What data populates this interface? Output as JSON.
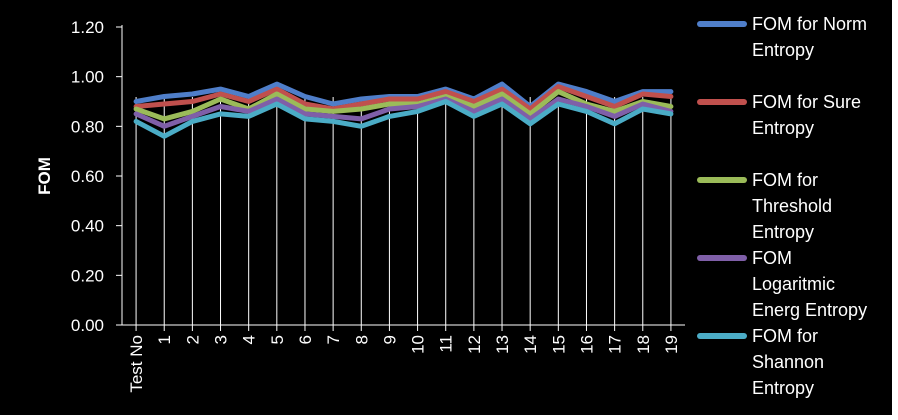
{
  "chart_data": {
    "type": "line",
    "title": "",
    "xlabel": "",
    "ylabel": "FOM",
    "ylim": [
      0,
      1.2
    ],
    "yticks": [
      "0.00",
      "0.20",
      "0.40",
      "0.60",
      "0.80",
      "1.00",
      "1.20"
    ],
    "grid": "vertical",
    "legend_position": "right",
    "categories": [
      "Test No",
      "1",
      "2",
      "3",
      "4",
      "5",
      "6",
      "7",
      "8",
      "9",
      "10",
      "11",
      "12",
      "13",
      "14",
      "15",
      "16",
      "17",
      "18",
      "19"
    ],
    "series": [
      {
        "name": "FOM for Norm Entropy",
        "legend_lines": [
          "FOM for Norm",
          "Entropy"
        ],
        "color": "#4F7EC9",
        "values": [
          0.9,
          0.92,
          0.93,
          0.95,
          0.92,
          0.97,
          0.92,
          0.89,
          0.91,
          0.92,
          0.92,
          0.95,
          0.91,
          0.97,
          0.88,
          0.97,
          0.94,
          0.9,
          0.94,
          0.94
        ]
      },
      {
        "name": "FOM for Sure Entropy",
        "legend_lines": [
          "FOM for Sure",
          "Entropy"
        ],
        "color": "#C0504D",
        "values": [
          0.88,
          0.89,
          0.9,
          0.93,
          0.9,
          0.95,
          0.89,
          0.87,
          0.89,
          0.91,
          0.91,
          0.94,
          0.9,
          0.95,
          0.87,
          0.96,
          0.92,
          0.88,
          0.93,
          0.92
        ]
      },
      {
        "name": "FOM for Threshold Entropy",
        "legend_lines": [
          "FOM for",
          "Threshold",
          "Entropy"
        ],
        "color": "#9BBB59",
        "values": [
          0.87,
          0.83,
          0.86,
          0.91,
          0.87,
          0.93,
          0.87,
          0.86,
          0.87,
          0.89,
          0.89,
          0.92,
          0.88,
          0.93,
          0.85,
          0.94,
          0.89,
          0.86,
          0.9,
          0.88
        ]
      },
      {
        "name": "FOM Logaritmic Energ Entropy",
        "legend_lines": [
          "FOM",
          "Logaritmic",
          "Energ Entropy"
        ],
        "color": "#7F5FA8",
        "values": [
          0.85,
          0.8,
          0.84,
          0.88,
          0.86,
          0.91,
          0.85,
          0.84,
          0.83,
          0.87,
          0.88,
          0.91,
          0.86,
          0.91,
          0.83,
          0.91,
          0.88,
          0.84,
          0.89,
          0.86
        ]
      },
      {
        "name": "FOM for Shannon Entropy",
        "legend_lines": [
          "FOM for",
          "Shannon",
          "Entropy"
        ],
        "color": "#4BACC6",
        "values": [
          0.82,
          0.76,
          0.82,
          0.85,
          0.84,
          0.89,
          0.83,
          0.82,
          0.8,
          0.84,
          0.86,
          0.9,
          0.84,
          0.89,
          0.81,
          0.89,
          0.86,
          0.81,
          0.87,
          0.85
        ]
      }
    ]
  }
}
